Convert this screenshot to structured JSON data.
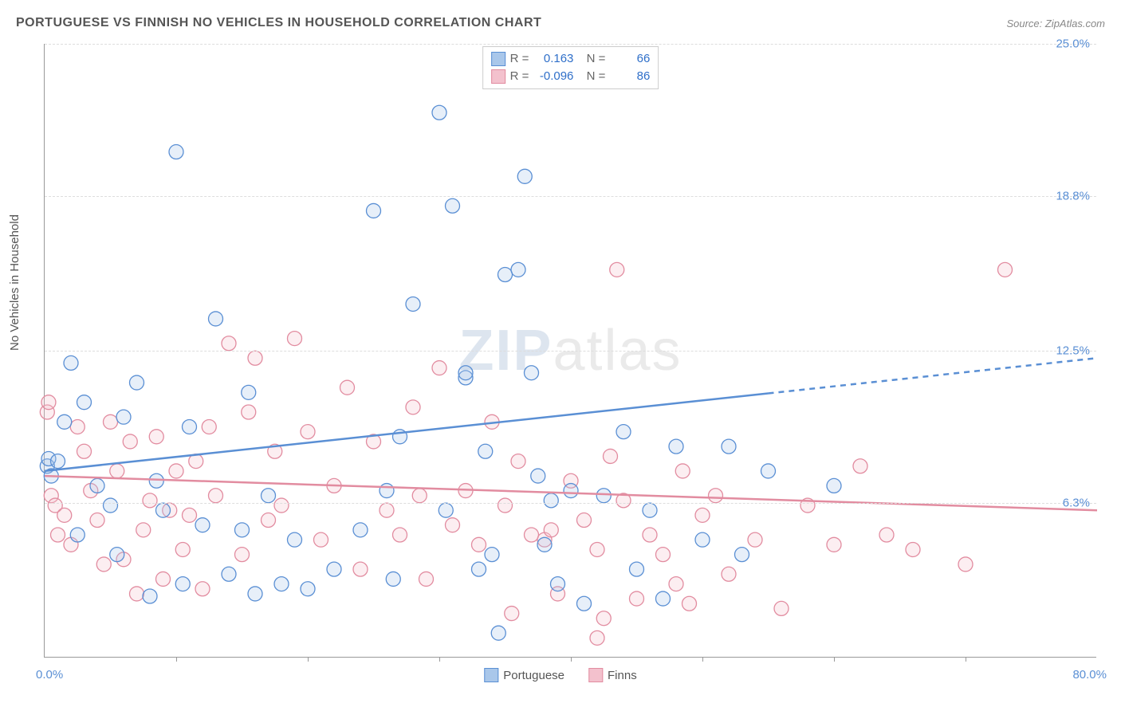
{
  "title": "PORTUGUESE VS FINNISH NO VEHICLES IN HOUSEHOLD CORRELATION CHART",
  "source": "Source: ZipAtlas.com",
  "ylabel": "No Vehicles in Household",
  "watermark_a": "ZIP",
  "watermark_b": "atlas",
  "chart": {
    "type": "scatter",
    "xlim": [
      0,
      80
    ],
    "ylim": [
      0,
      25
    ],
    "x_min_label": "0.0%",
    "x_max_label": "80.0%",
    "yticks": [
      6.3,
      12.5,
      18.8,
      25.0
    ],
    "ytick_labels": [
      "6.3%",
      "12.5%",
      "18.8%",
      "25.0%"
    ],
    "xtick_positions": [
      10,
      20,
      30,
      40,
      50,
      60,
      70
    ],
    "background_color": "#ffffff",
    "grid_color": "#dddddd",
    "marker_radius": 9,
    "marker_stroke_width": 1.3,
    "marker_fill_opacity": 0.28,
    "series": [
      {
        "name": "Portuguese",
        "color_stroke": "#5a8fd4",
        "color_fill": "#a9c7ea",
        "R": "0.163",
        "N": "66",
        "trend": {
          "y_at_x0": 7.6,
          "y_at_x80": 12.2,
          "solid_until_x": 55
        },
        "points": [
          [
            0.2,
            7.8
          ],
          [
            0.3,
            8.1
          ],
          [
            0.5,
            7.4
          ],
          [
            1.0,
            8.0
          ],
          [
            1.5,
            9.6
          ],
          [
            2.0,
            12.0
          ],
          [
            2.5,
            5.0
          ],
          [
            3.0,
            10.4
          ],
          [
            4.0,
            7.0
          ],
          [
            5.0,
            6.2
          ],
          [
            5.5,
            4.2
          ],
          [
            6.0,
            9.8
          ],
          [
            7.0,
            11.2
          ],
          [
            8.0,
            2.5
          ],
          [
            8.5,
            7.2
          ],
          [
            9.0,
            6.0
          ],
          [
            10.0,
            20.6
          ],
          [
            10.5,
            3.0
          ],
          [
            11.0,
            9.4
          ],
          [
            12.0,
            5.4
          ],
          [
            13.0,
            13.8
          ],
          [
            14.0,
            3.4
          ],
          [
            15.0,
            5.2
          ],
          [
            15.5,
            10.8
          ],
          [
            16.0,
            2.6
          ],
          [
            17.0,
            6.6
          ],
          [
            18.0,
            3.0
          ],
          [
            19.0,
            4.8
          ],
          [
            20.0,
            2.8
          ],
          [
            22.0,
            3.6
          ],
          [
            24.0,
            5.2
          ],
          [
            25.0,
            18.2
          ],
          [
            26.0,
            6.8
          ],
          [
            26.5,
            3.2
          ],
          [
            27.0,
            9.0
          ],
          [
            28.0,
            14.4
          ],
          [
            30.0,
            22.2
          ],
          [
            30.5,
            6.0
          ],
          [
            31.0,
            18.4
          ],
          [
            32.0,
            11.4
          ],
          [
            32.0,
            11.6
          ],
          [
            33.0,
            3.6
          ],
          [
            33.5,
            8.4
          ],
          [
            34.0,
            4.2
          ],
          [
            34.5,
            1.0
          ],
          [
            35.0,
            15.6
          ],
          [
            36.0,
            15.8
          ],
          [
            36.5,
            19.6
          ],
          [
            37.0,
            11.6
          ],
          [
            37.5,
            7.4
          ],
          [
            38.0,
            4.6
          ],
          [
            38.5,
            6.4
          ],
          [
            39.0,
            3.0
          ],
          [
            40.0,
            6.8
          ],
          [
            41.0,
            2.2
          ],
          [
            42.5,
            6.6
          ],
          [
            44.0,
            9.2
          ],
          [
            45.0,
            3.6
          ],
          [
            46.0,
            6.0
          ],
          [
            47.0,
            2.4
          ],
          [
            48.0,
            8.6
          ],
          [
            50.0,
            4.8
          ],
          [
            52.0,
            8.6
          ],
          [
            53.0,
            4.2
          ],
          [
            55.0,
            7.6
          ],
          [
            60.0,
            7.0
          ]
        ]
      },
      {
        "name": "Finns",
        "color_stroke": "#e28ca0",
        "color_fill": "#f3c1cd",
        "R": "-0.096",
        "N": "86",
        "trend": {
          "y_at_x0": 7.4,
          "y_at_x80": 6.0,
          "solid_until_x": 80
        },
        "points": [
          [
            0.2,
            10.0
          ],
          [
            0.3,
            10.4
          ],
          [
            0.5,
            6.6
          ],
          [
            0.8,
            6.2
          ],
          [
            1.0,
            5.0
          ],
          [
            1.5,
            5.8
          ],
          [
            2.0,
            4.6
          ],
          [
            2.5,
            9.4
          ],
          [
            3.0,
            8.4
          ],
          [
            3.5,
            6.8
          ],
          [
            4.0,
            5.6
          ],
          [
            4.5,
            3.8
          ],
          [
            5.0,
            9.6
          ],
          [
            5.5,
            7.6
          ],
          [
            6.0,
            4.0
          ],
          [
            6.5,
            8.8
          ],
          [
            7.0,
            2.6
          ],
          [
            7.5,
            5.2
          ],
          [
            8.0,
            6.4
          ],
          [
            8.5,
            9.0
          ],
          [
            9.0,
            3.2
          ],
          [
            9.5,
            6.0
          ],
          [
            10.0,
            7.6
          ],
          [
            10.5,
            4.4
          ],
          [
            11.0,
            5.8
          ],
          [
            11.5,
            8.0
          ],
          [
            12.0,
            2.8
          ],
          [
            12.5,
            9.4
          ],
          [
            13.0,
            6.6
          ],
          [
            14.0,
            12.8
          ],
          [
            15.0,
            4.2
          ],
          [
            15.5,
            10.0
          ],
          [
            16.0,
            12.2
          ],
          [
            17.0,
            5.6
          ],
          [
            17.5,
            8.4
          ],
          [
            18.0,
            6.2
          ],
          [
            19.0,
            13.0
          ],
          [
            20.0,
            9.2
          ],
          [
            21.0,
            4.8
          ],
          [
            22.0,
            7.0
          ],
          [
            23.0,
            11.0
          ],
          [
            24.0,
            3.6
          ],
          [
            25.0,
            8.8
          ],
          [
            26.0,
            6.0
          ],
          [
            27.0,
            5.0
          ],
          [
            28.0,
            10.2
          ],
          [
            28.5,
            6.6
          ],
          [
            29.0,
            3.2
          ],
          [
            30.0,
            11.8
          ],
          [
            31.0,
            5.4
          ],
          [
            32.0,
            6.8
          ],
          [
            33.0,
            4.6
          ],
          [
            34.0,
            9.6
          ],
          [
            35.0,
            6.2
          ],
          [
            35.5,
            1.8
          ],
          [
            36.0,
            8.0
          ],
          [
            37.0,
            5.0
          ],
          [
            38.0,
            4.8
          ],
          [
            38.5,
            5.2
          ],
          [
            39.0,
            2.6
          ],
          [
            40.0,
            7.2
          ],
          [
            41.0,
            5.6
          ],
          [
            42.0,
            4.4
          ],
          [
            42.5,
            1.6
          ],
          [
            43.0,
            8.2
          ],
          [
            43.5,
            15.8
          ],
          [
            44.0,
            6.4
          ],
          [
            45.0,
            2.4
          ],
          [
            46.0,
            5.0
          ],
          [
            47.0,
            4.2
          ],
          [
            48.0,
            3.0
          ],
          [
            48.5,
            7.6
          ],
          [
            49.0,
            2.2
          ],
          [
            50.0,
            5.8
          ],
          [
            51.0,
            6.6
          ],
          [
            52.0,
            3.4
          ],
          [
            54.0,
            4.8
          ],
          [
            56.0,
            2.0
          ],
          [
            58.0,
            6.2
          ],
          [
            60.0,
            4.6
          ],
          [
            62.0,
            7.8
          ],
          [
            64.0,
            5.0
          ],
          [
            66.0,
            4.4
          ],
          [
            70.0,
            3.8
          ],
          [
            73.0,
            15.8
          ],
          [
            42.0,
            0.8
          ]
        ]
      }
    ]
  },
  "legend_top": {
    "r_label": "R =",
    "n_label": "N ="
  },
  "legend_bottom": [
    "Portuguese",
    "Finns"
  ]
}
